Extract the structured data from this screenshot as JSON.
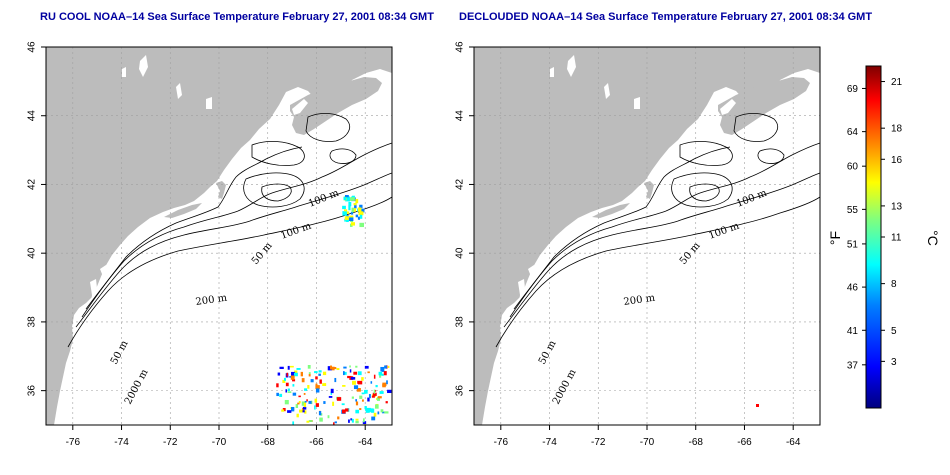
{
  "panels": [
    {
      "id": "left",
      "title": "RU COOL NOAA–14 Sea Surface Temperature February 27, 2001 08:34 GMT",
      "contour_labels": [
        "100 m",
        "100 m",
        "50 m",
        "200 m",
        "50 m",
        "2000 m"
      ],
      "sst_patches": "sparse cloud-free pixels near 40.5N 65W and 35.5N 66W"
    },
    {
      "id": "right",
      "title": "DECLOUDED NOAA–14 Sea Surface Temperature February 27, 2001 08:34 GMT",
      "contour_labels": [
        "100 m",
        "100 m",
        "50 m",
        "200 m",
        "50 m",
        "2000 m"
      ],
      "sst_patches": "mostly empty"
    }
  ],
  "axes": {
    "lon_ticks": [
      "-76",
      "-74",
      "-72",
      "-70",
      "-68",
      "-66",
      "-64"
    ],
    "lat_ticks": [
      "36",
      "38",
      "40",
      "42",
      "44",
      "46"
    ],
    "lon_range": [
      -77.1,
      -62.9
    ],
    "lat_range": [
      35.0,
      46.0
    ]
  },
  "colorbar": {
    "fahrenheit_label": "°F",
    "celsius_label": "°C",
    "fahrenheit_ticks": [
      "69",
      "64",
      "60",
      "55",
      "51",
      "46",
      "41",
      "37"
    ],
    "celsius_ticks": [
      "21",
      "18",
      "16",
      "13",
      "11",
      "8",
      "5",
      "3"
    ],
    "range_c": [
      0,
      22
    ],
    "colors": [
      "#00007f",
      "#0000ff",
      "#007fff",
      "#00ffff",
      "#7fff7f",
      "#ffff00",
      "#ff7f00",
      "#ff0000",
      "#7f0000"
    ]
  },
  "colors": {
    "land": "#bcbcbc",
    "title": "#0000a0",
    "grid": "#a0a0a0",
    "contour": "#000000"
  }
}
